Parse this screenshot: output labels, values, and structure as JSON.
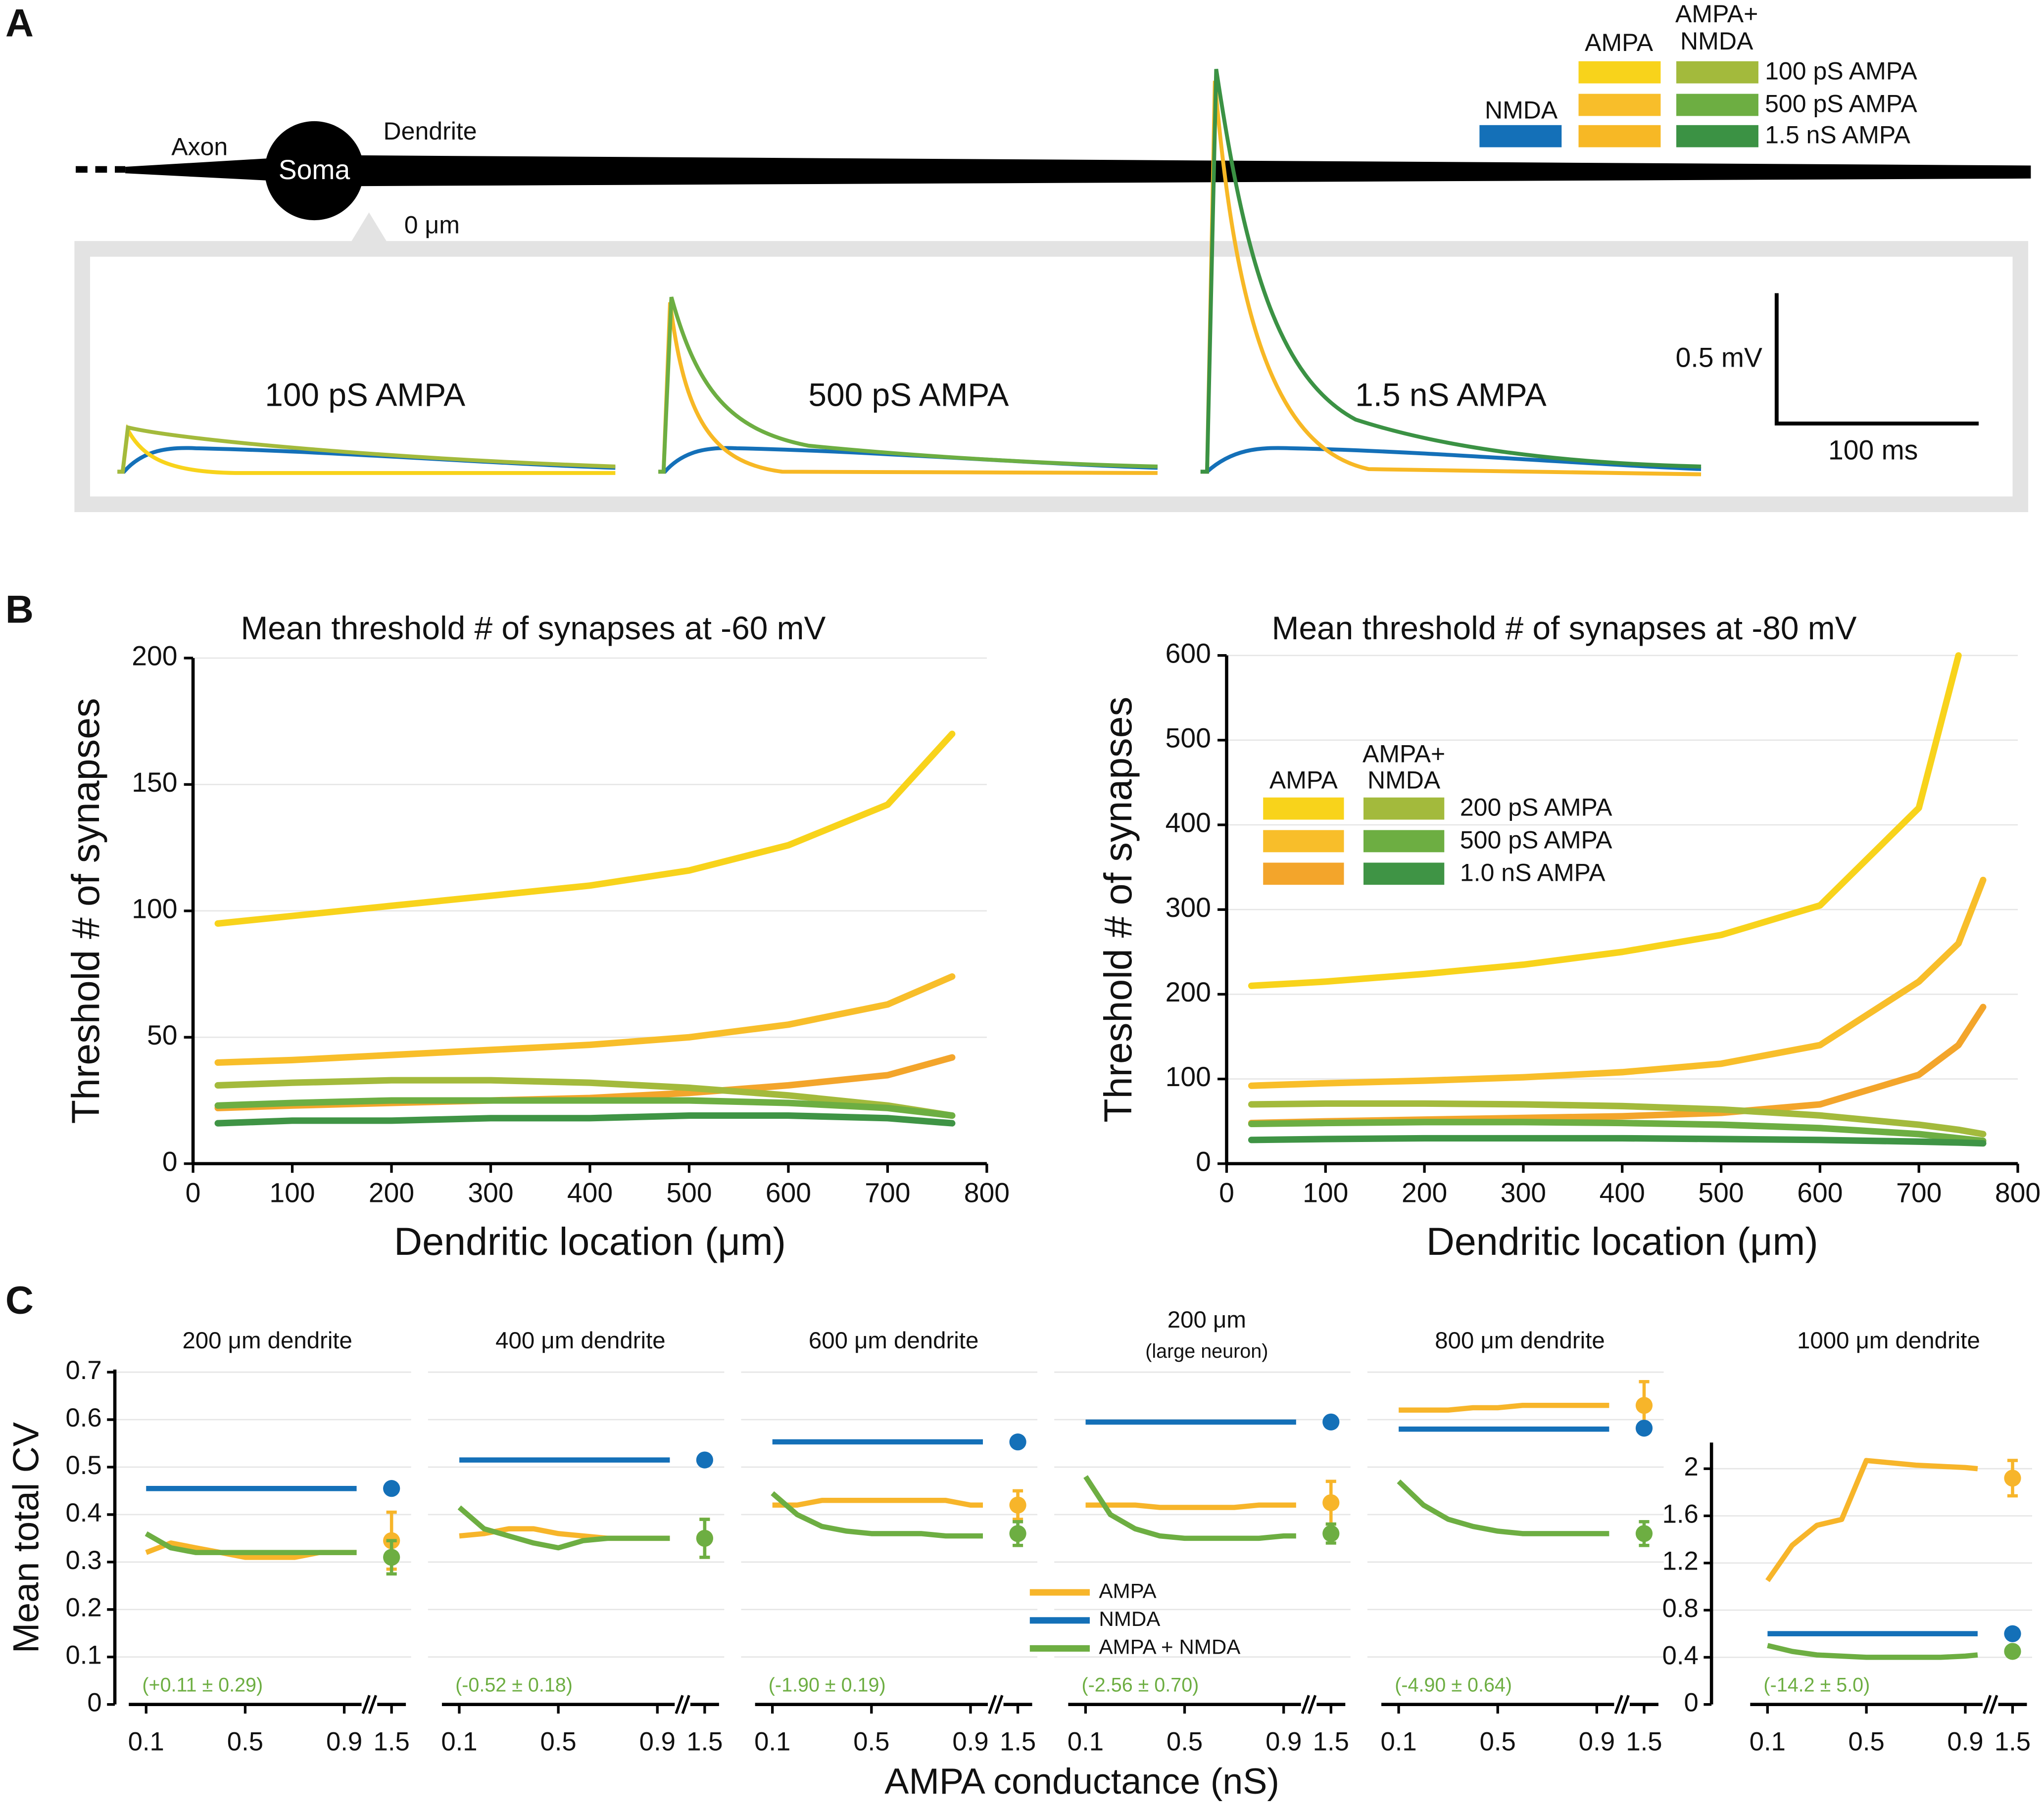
{
  "panel_labels": [
    "A",
    "B",
    "C"
  ],
  "panel_a": {
    "axon": "Axon",
    "soma": "Soma",
    "dendrite": "Dendrite",
    "origin": "0 μm",
    "trace_labels": [
      "100 pS AMPA",
      "500 pS AMPA",
      "1.5 nS AMPA"
    ],
    "scale_v": "0.5 mV",
    "scale_t": "100 ms",
    "legend_headers": [
      [
        "NMDA"
      ],
      [
        "AMPA"
      ],
      [
        "AMPA+",
        "NMDA"
      ]
    ],
    "legend_rows": [
      "100 pS AMPA",
      "500 pS AMPA",
      "1.5 nS AMPA"
    ]
  },
  "panel_c": {
    "xlabel": "AMPA conductance (nS)",
    "ylabel": "Mean total CV"
  },
  "chart_data": [
    {
      "type": "line",
      "title": "Mean threshold # of synapses at -60 mV",
      "xlabel": "Dendritic location (μm)",
      "ylabel": "Threshold # of synapses",
      "x": [
        25,
        100,
        200,
        300,
        400,
        500,
        600,
        700,
        765
      ],
      "xlim": [
        0,
        800
      ],
      "xticks": [
        0,
        100,
        200,
        300,
        400,
        500,
        600,
        700,
        800
      ],
      "ylim": [
        0,
        200
      ],
      "yticks": [
        0,
        50,
        100,
        150,
        200
      ],
      "grid": true,
      "series": [
        {
          "color": "#f8d31b",
          "values": [
            95,
            98,
            102,
            106,
            110,
            116,
            126,
            142,
            170
          ]
        },
        {
          "color": "#f8be2a",
          "values": [
            40,
            41,
            43,
            45,
            47,
            50,
            55,
            63,
            74
          ]
        },
        {
          "color": "#f3a52b",
          "values": [
            22,
            23,
            24,
            25,
            26,
            28,
            31,
            35,
            42
          ]
        },
        {
          "color": "#a3ba3c",
          "values": [
            31,
            32,
            33,
            33,
            32,
            30,
            27,
            23,
            19
          ]
        },
        {
          "color": "#6dae42",
          "values": [
            23,
            24,
            25,
            25,
            25,
            25,
            24,
            22,
            19
          ]
        },
        {
          "color": "#3f9445",
          "values": [
            16,
            17,
            17,
            18,
            18,
            19,
            19,
            18,
            16
          ]
        }
      ]
    },
    {
      "type": "line",
      "title": "Mean threshold # of synapses at -80 mV",
      "xlabel": "Dendritic location (μm)",
      "ylabel": "Threshold # of synapses",
      "x": [
        25,
        100,
        200,
        300,
        400,
        500,
        600,
        700,
        740,
        765
      ],
      "xlim": [
        0,
        800
      ],
      "xticks": [
        0,
        100,
        200,
        300,
        400,
        500,
        600,
        700,
        800
      ],
      "ylim": [
        0,
        600
      ],
      "yticks": [
        0,
        100,
        200,
        300,
        400,
        500,
        600
      ],
      "grid": true,
      "legend_headers": [
        [
          "AMPA"
        ],
        [
          "AMPA+",
          "NMDA"
        ]
      ],
      "series": [
        {
          "color": "#f8d31b",
          "values": [
            210,
            215,
            224,
            235,
            250,
            270,
            305,
            420,
            600,
            null
          ]
        },
        {
          "color": "#f8be2a",
          "values": [
            92,
            95,
            98,
            102,
            108,
            118,
            140,
            215,
            260,
            335
          ]
        },
        {
          "color": "#f3a52b",
          "values": [
            48,
            50,
            52,
            54,
            56,
            60,
            70,
            105,
            140,
            185
          ]
        },
        {
          "name": "200 pS AMPA",
          "color": "#a3ba3c",
          "values": [
            70,
            71,
            71,
            70,
            68,
            64,
            57,
            46,
            40,
            35
          ]
        },
        {
          "name": "500 pS AMPA",
          "color": "#6dae42",
          "values": [
            47,
            48,
            49,
            49,
            48,
            46,
            42,
            35,
            30,
            27
          ]
        },
        {
          "name": "1.0 nS AMPA",
          "color": "#3f9445",
          "values": [
            28,
            29,
            30,
            30,
            30,
            29,
            28,
            26,
            25,
            24
          ]
        }
      ]
    },
    {
      "type": "line",
      "title": "200 μm dendrite",
      "annotation": "(+0.11 ± 0.29)",
      "show_yaxis": true,
      "x": [
        0.1,
        0.2,
        0.3,
        0.4,
        0.5,
        0.6,
        0.7,
        0.8,
        0.9,
        0.95
      ],
      "xlim": [
        0.03,
        0.97
      ],
      "xticks": [
        0.1,
        0.5,
        0.9
      ],
      "xtick_break": 1.5,
      "ylim": [
        0,
        0.7
      ],
      "yticks": [
        0,
        0.1,
        0.2,
        0.3,
        0.4,
        0.5,
        0.6,
        0.7
      ],
      "grid": true,
      "series": [
        {
          "color": "#f7b52a",
          "values": [
            0.32,
            0.34,
            0.33,
            0.32,
            0.31,
            0.31,
            0.31,
            0.32,
            0.32,
            0.32
          ],
          "point": 0.345,
          "point_error": 0.06
        },
        {
          "color": "#1470b8",
          "values": [
            0.455,
            0.455,
            0.455,
            0.455,
            0.455,
            0.455,
            0.455,
            0.455,
            0.455,
            0.455
          ],
          "point": 0.455
        },
        {
          "color": "#6dae42",
          "values": [
            0.36,
            0.33,
            0.32,
            0.32,
            0.32,
            0.32,
            0.32,
            0.32,
            0.32,
            0.32
          ],
          "point": 0.31,
          "point_error": 0.035
        }
      ]
    },
    {
      "type": "line",
      "title": "400 μm dendrite",
      "annotation": "(-0.52 ± 0.18)",
      "show_yaxis": false,
      "x": [
        0.1,
        0.2,
        0.3,
        0.4,
        0.5,
        0.6,
        0.7,
        0.8,
        0.9,
        0.95
      ],
      "xlim": [
        0.03,
        0.97
      ],
      "xticks": [
        0.1,
        0.5,
        0.9
      ],
      "xtick_break": 1.5,
      "ylim": [
        0,
        0.7
      ],
      "yticks": [
        0,
        0.1,
        0.2,
        0.3,
        0.4,
        0.5,
        0.6,
        0.7
      ],
      "grid": true,
      "series": [
        {
          "color": "#f7b52a",
          "values": [
            0.355,
            0.36,
            0.37,
            0.37,
            0.36,
            0.355,
            0.35,
            0.35,
            0.35,
            0.35
          ],
          "point": 0.35,
          "point_error": 0.04
        },
        {
          "color": "#1470b8",
          "values": [
            0.515,
            0.515,
            0.515,
            0.515,
            0.515,
            0.515,
            0.515,
            0.515,
            0.515,
            0.515
          ],
          "point": 0.515
        },
        {
          "color": "#6dae42",
          "values": [
            0.415,
            0.37,
            0.355,
            0.34,
            0.33,
            0.345,
            0.35,
            0.35,
            0.35,
            0.35
          ],
          "point": 0.35,
          "point_error": 0.04
        }
      ]
    },
    {
      "type": "line",
      "title": "600 μm dendrite",
      "annotation": "(-1.90 ± 0.19)",
      "show_yaxis": false,
      "legend": true,
      "x": [
        0.1,
        0.2,
        0.3,
        0.4,
        0.5,
        0.6,
        0.7,
        0.8,
        0.9,
        0.95
      ],
      "xlim": [
        0.03,
        0.97
      ],
      "xticks": [
        0.1,
        0.5,
        0.9
      ],
      "xtick_break": 1.5,
      "ylim": [
        0,
        0.7
      ],
      "yticks": [
        0,
        0.1,
        0.2,
        0.3,
        0.4,
        0.5,
        0.6,
        0.7
      ],
      "grid": true,
      "series": [
        {
          "name": "AMPA",
          "color": "#f7b52a",
          "values": [
            0.42,
            0.42,
            0.43,
            0.43,
            0.43,
            0.43,
            0.43,
            0.43,
            0.42,
            0.42
          ],
          "point": 0.42,
          "point_error": 0.03
        },
        {
          "name": "NMDA",
          "color": "#1470b8",
          "values": [
            0.553,
            0.553,
            0.553,
            0.553,
            0.553,
            0.553,
            0.553,
            0.553,
            0.553,
            0.553
          ],
          "point": 0.553
        },
        {
          "name": "AMPA + NMDA",
          "color": "#6dae42",
          "values": [
            0.445,
            0.4,
            0.375,
            0.365,
            0.36,
            0.36,
            0.36,
            0.355,
            0.355,
            0.355
          ],
          "point": 0.36,
          "point_error": 0.025
        }
      ]
    },
    {
      "type": "line",
      "title": "200 μm",
      "subtitle": "(large neuron)",
      "annotation": "(-2.56 ± 0.70)",
      "show_yaxis": false,
      "x": [
        0.1,
        0.2,
        0.3,
        0.4,
        0.5,
        0.6,
        0.7,
        0.8,
        0.9,
        0.95
      ],
      "xlim": [
        0.03,
        0.97
      ],
      "xticks": [
        0.1,
        0.5,
        0.9
      ],
      "xtick_break": 1.5,
      "ylim": [
        0,
        0.7
      ],
      "yticks": [
        0,
        0.1,
        0.2,
        0.3,
        0.4,
        0.5,
        0.6,
        0.7
      ],
      "grid": true,
      "series": [
        {
          "color": "#f7b52a",
          "values": [
            0.42,
            0.42,
            0.42,
            0.415,
            0.415,
            0.415,
            0.415,
            0.42,
            0.42,
            0.42
          ],
          "point": 0.425,
          "point_error": 0.045
        },
        {
          "color": "#1470b8",
          "values": [
            0.595,
            0.595,
            0.595,
            0.595,
            0.595,
            0.595,
            0.595,
            0.595,
            0.595,
            0.595
          ],
          "point": 0.595
        },
        {
          "color": "#6dae42",
          "values": [
            0.48,
            0.4,
            0.37,
            0.355,
            0.35,
            0.35,
            0.35,
            0.35,
            0.355,
            0.355
          ],
          "point": 0.36,
          "point_error": 0.02
        }
      ]
    },
    {
      "type": "line",
      "title": "800 μm dendrite",
      "annotation": "(-4.90 ± 0.64)",
      "show_yaxis": false,
      "x": [
        0.1,
        0.2,
        0.3,
        0.4,
        0.5,
        0.6,
        0.7,
        0.8,
        0.9,
        0.95
      ],
      "xlim": [
        0.03,
        0.97
      ],
      "xticks": [
        0.1,
        0.5,
        0.9
      ],
      "xtick_break": 1.5,
      "ylim": [
        0,
        0.7
      ],
      "yticks": [
        0,
        0.1,
        0.2,
        0.3,
        0.4,
        0.5,
        0.6,
        0.7
      ],
      "grid": true,
      "series": [
        {
          "color": "#f7b52a",
          "values": [
            0.62,
            0.62,
            0.62,
            0.625,
            0.625,
            0.63,
            0.63,
            0.63,
            0.63,
            0.63
          ],
          "point": 0.63,
          "point_error": 0.05
        },
        {
          "color": "#1470b8",
          "values": [
            0.58,
            0.58,
            0.58,
            0.58,
            0.58,
            0.58,
            0.58,
            0.58,
            0.58,
            0.58
          ],
          "point": 0.582
        },
        {
          "color": "#6dae42",
          "values": [
            0.47,
            0.42,
            0.39,
            0.375,
            0.365,
            0.36,
            0.36,
            0.36,
            0.36,
            0.36
          ],
          "point": 0.36,
          "point_error": 0.025
        }
      ]
    },
    {
      "type": "line",
      "title": "1000 μm dendrite",
      "annotation": "(-14.2 ± 5.0)",
      "show_yaxis": true,
      "x": [
        0.1,
        0.2,
        0.3,
        0.4,
        0.5,
        0.6,
        0.7,
        0.8,
        0.9,
        0.95
      ],
      "xlim": [
        0.03,
        0.97
      ],
      "xticks": [
        0.1,
        0.5,
        0.9
      ],
      "xtick_break": 1.5,
      "ylim": [
        0,
        2.2
      ],
      "yticks": [
        0,
        0.4,
        0.8,
        1.2,
        1.6,
        2
      ],
      "grid": true,
      "series": [
        {
          "color": "#f7b52a",
          "values": [
            1.05,
            1.35,
            1.52,
            1.57,
            2.07,
            2.05,
            2.03,
            2.02,
            2.01,
            2.0
          ],
          "point": 1.92,
          "point_error": 0.15
        },
        {
          "color": "#1470b8",
          "values": [
            0.6,
            0.6,
            0.6,
            0.6,
            0.6,
            0.6,
            0.6,
            0.6,
            0.6,
            0.6
          ],
          "point": 0.6
        },
        {
          "color": "#6dae42",
          "values": [
            0.5,
            0.45,
            0.42,
            0.41,
            0.4,
            0.4,
            0.4,
            0.4,
            0.41,
            0.42
          ],
          "point": 0.45,
          "point_error": 0.02
        }
      ]
    }
  ]
}
